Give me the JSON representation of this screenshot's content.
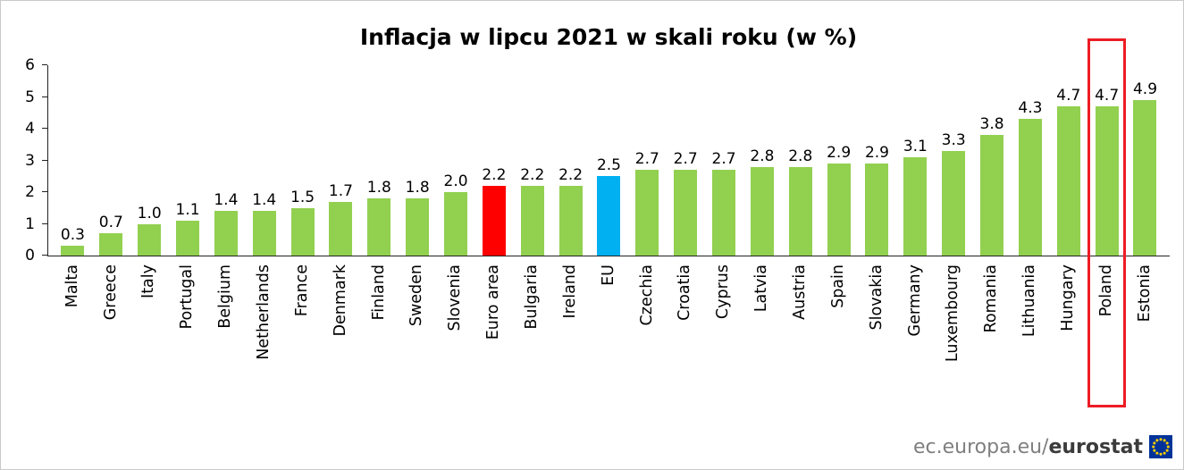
{
  "title": "Inflacja w lipcu 2021 w skali roku (w %)",
  "chart_data": {
    "type": "bar",
    "title": "Inflacja w lipcu 2021 w skali roku (w %)",
    "categories": [
      "Malta",
      "Greece",
      "Italy",
      "Portugal",
      "Belgium",
      "Netherlands",
      "France",
      "Denmark",
      "Finland",
      "Sweden",
      "Slovenia",
      "Euro area",
      "Bulgaria",
      "Ireland",
      "EU",
      "Czechia",
      "Croatia",
      "Cyprus",
      "Latvia",
      "Austria",
      "Spain",
      "Slovakia",
      "Germany",
      "Luxembourg",
      "Romania",
      "Lithuania",
      "Hungary",
      "Poland",
      "Estonia"
    ],
    "values": [
      0.3,
      0.7,
      1.0,
      1.1,
      1.4,
      1.4,
      1.5,
      1.7,
      1.8,
      1.8,
      2.0,
      2.2,
      2.2,
      2.2,
      2.5,
      2.7,
      2.7,
      2.7,
      2.8,
      2.8,
      2.9,
      2.9,
      3.1,
      3.3,
      3.8,
      4.3,
      4.7,
      4.7,
      4.9
    ],
    "value_labels": [
      "0.3",
      "0.7",
      "1.0",
      "1.1",
      "1.4",
      "1.4",
      "1.5",
      "1.7",
      "1.8",
      "1.8",
      "2.0",
      "2.2",
      "2.2",
      "2.2",
      "2.5",
      "2.7",
      "2.7",
      "2.7",
      "2.8",
      "2.8",
      "2.9",
      "2.9",
      "3.1",
      "3.3",
      "3.8",
      "4.3",
      "4.7",
      "4.7",
      "4.9"
    ],
    "bar_colors": {
      "default": "#92D050",
      "Euro area": "#FF0000",
      "EU": "#00B0F0"
    },
    "highlight": {
      "category": "Poland",
      "box_color": "#ED1C24"
    },
    "xlabel": "",
    "ylabel": "",
    "ylim": [
      0,
      6
    ],
    "yticks": [
      0,
      1,
      2,
      3,
      4,
      5,
      6
    ],
    "grid": false,
    "legend": "none"
  },
  "footer": {
    "source_prefix": "ec.europa.eu/",
    "source_bold": "eurostat",
    "flag_icon": "eu-flag-icon",
    "flag_colors": {
      "field": "#003399",
      "stars": "#FFCC00"
    }
  }
}
